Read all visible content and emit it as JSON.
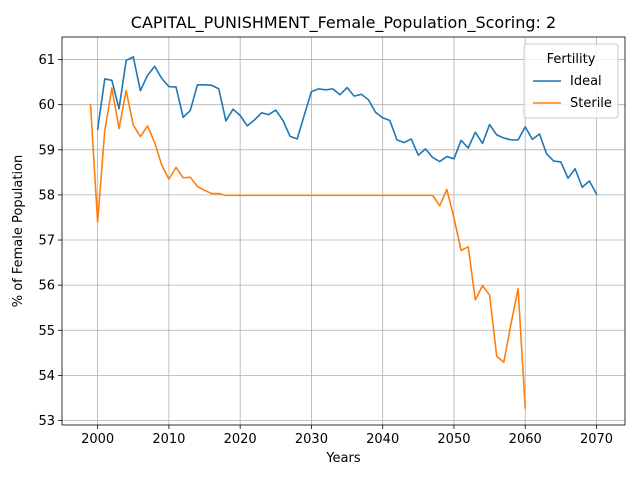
{
  "chart_data": {
    "type": "line",
    "title": "CAPITAL_PUNISHMENT_Female_Population_Scoring: 2",
    "xlabel": "Years",
    "ylabel": "% of Female Population",
    "xlim": [
      1995,
      2074
    ],
    "ylim": [
      52.9,
      61.5
    ],
    "xticks": [
      2000,
      2010,
      2020,
      2030,
      2040,
      2050,
      2060,
      2070
    ],
    "yticks": [
      53,
      54,
      55,
      56,
      57,
      58,
      59,
      60,
      61
    ],
    "grid": true,
    "legend": {
      "title": "Fertility",
      "placement": "top-right"
    },
    "series": [
      {
        "name": "Ideal",
        "color": "#1f77b4",
        "x": [
          2000,
          2001,
          2002,
          2003,
          2004,
          2005,
          2006,
          2007,
          2008,
          2009,
          2010,
          2011,
          2012,
          2013,
          2014,
          2015,
          2016,
          2017,
          2018,
          2019,
          2020,
          2021,
          2022,
          2023,
          2024,
          2025,
          2026,
          2027,
          2028,
          2029,
          2030,
          2031,
          2032,
          2033,
          2034,
          2035,
          2036,
          2037,
          2038,
          2039,
          2040,
          2041,
          2042,
          2043,
          2044,
          2045,
          2046,
          2047,
          2048,
          2049,
          2050,
          2051,
          2052,
          2053,
          2054,
          2055,
          2056,
          2057,
          2058,
          2059,
          2060,
          2061,
          2062,
          2063,
          2064,
          2065,
          2066,
          2067,
          2068,
          2069,
          2070
        ],
        "values": [
          59.45,
          60.57,
          60.54,
          59.91,
          60.98,
          61.06,
          60.31,
          60.65,
          60.85,
          60.58,
          60.4,
          60.39,
          59.72,
          59.87,
          60.44,
          60.44,
          60.43,
          60.35,
          59.64,
          59.9,
          59.76,
          59.53,
          59.66,
          59.82,
          59.78,
          59.88,
          59.65,
          59.3,
          59.24,
          59.77,
          60.29,
          60.35,
          60.33,
          60.35,
          60.22,
          60.38,
          60.19,
          60.23,
          60.11,
          59.83,
          59.71,
          59.65,
          59.22,
          59.16,
          59.24,
          58.88,
          59.02,
          58.83,
          58.74,
          58.85,
          58.8,
          59.21,
          59.04,
          59.39,
          59.14,
          59.56,
          59.33,
          59.26,
          59.22,
          59.22,
          59.51,
          59.23,
          59.35,
          58.91,
          58.75,
          58.73,
          58.37,
          58.58,
          58.17,
          58.31,
          58.02
        ]
      },
      {
        "name": "Sterile",
        "color": "#ff7f0e",
        "x": [
          1999,
          2000,
          2001,
          2002,
          2003,
          2004,
          2005,
          2006,
          2007,
          2008,
          2009,
          2010,
          2011,
          2012,
          2013,
          2014,
          2015,
          2016,
          2017,
          2018,
          2019,
          2020,
          2021,
          2022,
          2023,
          2024,
          2025,
          2026,
          2027,
          2028,
          2029,
          2030,
          2031,
          2032,
          2033,
          2034,
          2035,
          2036,
          2037,
          2038,
          2039,
          2040,
          2041,
          2042,
          2043,
          2044,
          2045,
          2046,
          2047,
          2048,
          2049,
          2050,
          2051,
          2052,
          2053,
          2054,
          2055,
          2056,
          2057,
          2058,
          2059,
          2060
        ],
        "values": [
          60.0,
          57.4,
          59.42,
          60.37,
          59.47,
          60.31,
          59.55,
          59.29,
          59.53,
          59.16,
          58.66,
          58.35,
          58.61,
          58.38,
          58.39,
          58.19,
          58.1,
          58.03,
          58.03,
          57.99,
          57.99,
          57.99,
          57.99,
          57.99,
          57.99,
          57.99,
          57.99,
          57.99,
          57.99,
          57.99,
          57.99,
          57.99,
          57.99,
          57.99,
          57.99,
          57.99,
          57.99,
          57.99,
          57.99,
          57.99,
          57.99,
          57.99,
          57.99,
          57.99,
          57.99,
          57.99,
          57.99,
          57.99,
          57.99,
          57.76,
          58.12,
          57.49,
          56.77,
          56.85,
          55.67,
          55.99,
          55.78,
          54.42,
          54.29,
          55.14,
          55.92,
          53.28
        ]
      }
    ]
  }
}
